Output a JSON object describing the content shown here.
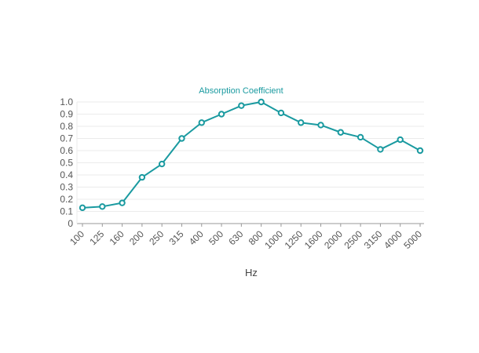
{
  "chart_data": {
    "type": "line",
    "title": "Absorption Coefficient",
    "xlabel": "Hz",
    "ylabel": "",
    "ylim": [
      0,
      1.0
    ],
    "yticks": [
      "0",
      "0.1",
      "0.2",
      "0.3",
      "0.4",
      "0.5",
      "0.6",
      "0.7",
      "0.8",
      "0.9",
      "1.0"
    ],
    "categories": [
      "100",
      "125",
      "160",
      "200",
      "250",
      "315",
      "400",
      "500",
      "630",
      "800",
      "1000",
      "1250",
      "1600",
      "2000",
      "2500",
      "3150",
      "4000",
      "5000"
    ],
    "series": [
      {
        "name": "Absorption Coefficient",
        "values": [
          0.13,
          0.14,
          0.17,
          0.38,
          0.49,
          0.7,
          0.83,
          0.9,
          0.97,
          1.0,
          0.91,
          0.83,
          0.81,
          0.75,
          0.71,
          0.61,
          0.69,
          0.6
        ]
      }
    ],
    "grid": true,
    "colors": {
      "line": "#1a9aa0",
      "title": "#1a9aa0",
      "grid": "#ebebeb",
      "axis": "#999999"
    }
  }
}
